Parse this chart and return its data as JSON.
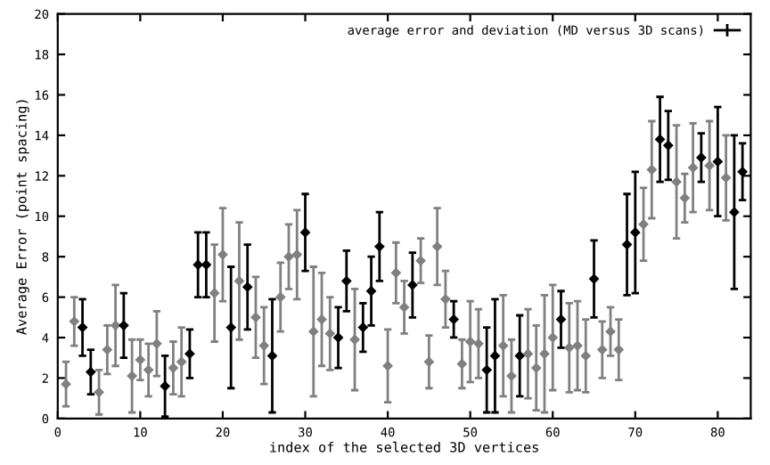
{
  "chart_data": {
    "type": "scatter",
    "xlabel": "index of the selected 3D vertices",
    "ylabel": "Average Error (point spacing)",
    "x": [
      1,
      2,
      3,
      4,
      5,
      6,
      7,
      8,
      9,
      10,
      11,
      12,
      13,
      14,
      15,
      16,
      17,
      18,
      19,
      20,
      21,
      22,
      23,
      24,
      25,
      26,
      27,
      28,
      29,
      30,
      31,
      32,
      33,
      34,
      35,
      36,
      37,
      38,
      39,
      40,
      41,
      42,
      43,
      44,
      45,
      46,
      47,
      48,
      49,
      50,
      51,
      52,
      53,
      54,
      55,
      56,
      57,
      58,
      59,
      60,
      61,
      62,
      63,
      64,
      65,
      66,
      67,
      68,
      69,
      70,
      71,
      72,
      73,
      74,
      75,
      76,
      77,
      78,
      79,
      80,
      81,
      82,
      83
    ],
    "series": [
      {
        "name": "average error and deviation (MD versus 3D scans)",
        "color": "#000000",
        "values": [
          1.7,
          4.8,
          4.5,
          2.3,
          1.3,
          3.4,
          4.6,
          4.6,
          2.1,
          2.9,
          2.4,
          3.7,
          1.6,
          2.5,
          2.8,
          3.2,
          7.6,
          7.6,
          6.2,
          8.1,
          4.5,
          6.8,
          6.5,
          5.0,
          3.6,
          3.1,
          6.0,
          8.0,
          8.1,
          9.2,
          4.3,
          4.9,
          4.2,
          4.0,
          6.8,
          3.9,
          4.5,
          6.3,
          8.5,
          2.6,
          7.2,
          5.5,
          6.6,
          7.8,
          2.8,
          8.5,
          5.9,
          4.9,
          2.7,
          3.8,
          3.7,
          2.4,
          3.1,
          3.6,
          2.1,
          3.1,
          3.2,
          2.5,
          3.2,
          4.0,
          4.9,
          3.5,
          3.6,
          3.1,
          6.9,
          3.4,
          4.3,
          3.4,
          8.6,
          9.2,
          9.6,
          12.3,
          13.8,
          13.5,
          11.7,
          10.9,
          12.4,
          12.9,
          12.5,
          12.7,
          11.9,
          10.2,
          12.2
        ],
        "errors": [
          1.1,
          1.2,
          1.4,
          1.1,
          1.1,
          1.2,
          2.0,
          1.6,
          1.8,
          1.0,
          1.3,
          1.6,
          1.5,
          1.3,
          1.7,
          1.2,
          1.6,
          1.6,
          2.4,
          2.3,
          3.0,
          2.9,
          2.1,
          2.0,
          1.9,
          2.8,
          1.7,
          1.6,
          2.2,
          1.9,
          3.2,
          2.3,
          1.8,
          1.5,
          1.5,
          2.5,
          1.2,
          1.7,
          1.7,
          1.8,
          1.5,
          1.3,
          1.6,
          1.1,
          1.3,
          1.9,
          1.4,
          0.9,
          1.2,
          2.0,
          1.7,
          2.1,
          2.8,
          2.5,
          1.8,
          2.0,
          2.2,
          2.1,
          2.9,
          2.6,
          1.4,
          2.2,
          2.2,
          1.8,
          1.9,
          1.4,
          1.2,
          1.5,
          2.5,
          3.0,
          1.8,
          2.4,
          2.1,
          1.7,
          2.8,
          1.2,
          2.2,
          1.2,
          2.2,
          2.7,
          2.1,
          3.8,
          1.4
        ],
        "colors": [
          "#808080",
          "#808080",
          "#000000",
          "#000000",
          "#808080",
          "#808080",
          "#808080",
          "#000000",
          "#808080",
          "#808080",
          "#808080",
          "#808080",
          "#000000",
          "#808080",
          "#808080",
          "#000000",
          "#000000",
          "#000000",
          "#808080",
          "#808080",
          "#000000",
          "#808080",
          "#000000",
          "#808080",
          "#808080",
          "#000000",
          "#808080",
          "#808080",
          "#808080",
          "#000000",
          "#808080",
          "#808080",
          "#808080",
          "#000000",
          "#000000",
          "#808080",
          "#000000",
          "#000000",
          "#000000",
          "#808080",
          "#808080",
          "#808080",
          "#000000",
          "#808080",
          "#808080",
          "#808080",
          "#808080",
          "#000000",
          "#808080",
          "#808080",
          "#808080",
          "#000000",
          "#000000",
          "#808080",
          "#808080",
          "#000000",
          "#808080",
          "#808080",
          "#808080",
          "#808080",
          "#000000",
          "#808080",
          "#808080",
          "#808080",
          "#000000",
          "#808080",
          "#808080",
          "#808080",
          "#000000",
          "#000000",
          "#808080",
          "#808080",
          "#000000",
          "#000000",
          "#808080",
          "#808080",
          "#808080",
          "#000000",
          "#808080",
          "#000000",
          "#808080",
          "#000000",
          "#000000"
        ]
      }
    ],
    "xlim": [
      0,
      84
    ],
    "xticks": [
      0,
      10,
      20,
      30,
      40,
      50,
      60,
      70,
      80
    ],
    "ylim": [
      0,
      20
    ],
    "yticks": [
      0,
      2,
      4,
      6,
      8,
      10,
      12,
      14,
      16,
      18,
      20
    ],
    "marker": "diamond",
    "grid": false,
    "legend": "top right"
  }
}
